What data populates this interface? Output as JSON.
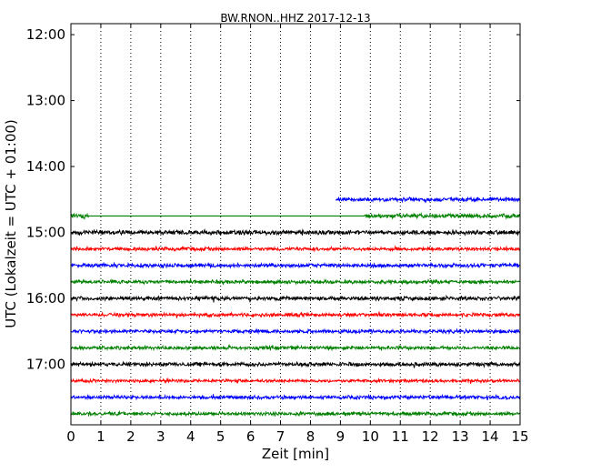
{
  "chart_data": {
    "type": "line",
    "title": "BW.RNON..HHZ 2017-12-13",
    "xlabel": "Zeit  [min]",
    "ylabel": "UTC (Lokalzeit = UTC + 01:00)",
    "xlim": [
      0,
      15
    ],
    "x_ticks": [
      "0",
      "1",
      "2",
      "3",
      "4",
      "5",
      "6",
      "7",
      "8",
      "9",
      "10",
      "11",
      "12",
      "13",
      "14",
      "15"
    ],
    "y_axis": "hours 11:50 (top) to 17:55 (bottom), one trace per 15-minute row",
    "y_ticks": [
      "12:00",
      "13:00",
      "14:00",
      "15:00",
      "16:00",
      "17:00"
    ],
    "grid": "vertical dotted lines at every minute",
    "trace_colors": [
      "#0000ff",
      "#008000",
      "#000000",
      "#ff0000"
    ],
    "series": [
      {
        "row": "14:30",
        "color": "#0000ff",
        "x_start": 8.85,
        "x_end": 15,
        "amplitude": 0.5
      },
      {
        "row": "14:45",
        "color": "#008000",
        "x_start": 0,
        "x_end": 0.6,
        "amplitude": 0.6,
        "flat_to": 9.8
      },
      {
        "row": "14:45",
        "color": "#008000",
        "x_start": 9.8,
        "x_end": 15,
        "amplitude": 0.55
      },
      {
        "row": "15:00",
        "color": "#000000",
        "x_start": 0,
        "x_end": 15,
        "amplitude": 0.55
      },
      {
        "row": "15:15",
        "color": "#ff0000",
        "x_start": 0,
        "x_end": 15,
        "amplitude": 0.45
      },
      {
        "row": "15:30",
        "color": "#0000ff",
        "x_start": 0,
        "x_end": 15,
        "amplitude": 0.5
      },
      {
        "row": "15:45",
        "color": "#008000",
        "x_start": 0,
        "x_end": 15,
        "amplitude": 0.45
      },
      {
        "row": "16:00",
        "color": "#000000",
        "x_start": 0,
        "x_end": 15,
        "amplitude": 0.5
      },
      {
        "row": "16:15",
        "color": "#ff0000",
        "x_start": 0,
        "x_end": 15,
        "amplitude": 0.45
      },
      {
        "row": "16:30",
        "color": "#0000ff",
        "x_start": 0,
        "x_end": 15,
        "amplitude": 0.45
      },
      {
        "row": "16:45",
        "color": "#008000",
        "x_start": 0,
        "x_end": 15,
        "amplitude": 0.45
      },
      {
        "row": "17:00",
        "color": "#000000",
        "x_start": 0,
        "x_end": 15,
        "amplitude": 0.5
      },
      {
        "row": "17:15",
        "color": "#ff0000",
        "x_start": 0,
        "x_end": 15,
        "amplitude": 0.4
      },
      {
        "row": "17:30",
        "color": "#0000ff",
        "x_start": 0,
        "x_end": 15,
        "amplitude": 0.45
      },
      {
        "row": "17:45",
        "color": "#008000",
        "x_start": 0,
        "x_end": 15,
        "amplitude": 0.45
      }
    ]
  }
}
